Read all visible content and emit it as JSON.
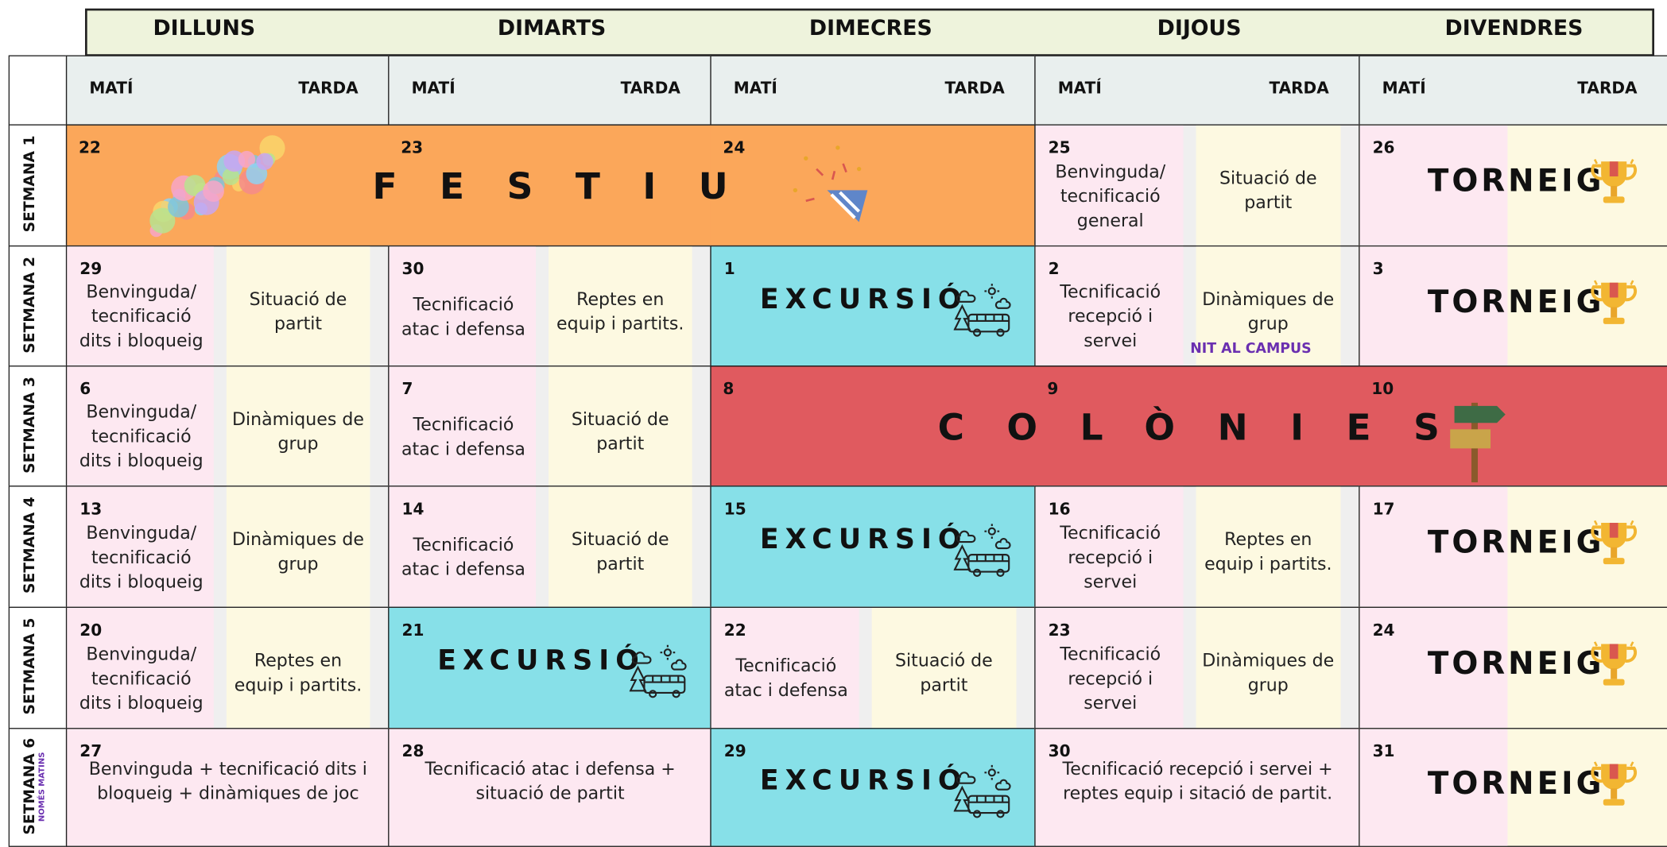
{
  "days": [
    {
      "name": "DILLUNS",
      "morning": "MATÍ",
      "afternoon": "TARDA"
    },
    {
      "name": "DIMARTS",
      "morning": "MATÍ",
      "afternoon": "TARDA"
    },
    {
      "name": "DIMECRES",
      "morning": "MATÍ",
      "afternoon": "TARDA"
    },
    {
      "name": "DIJOUS",
      "morning": "MATÍ",
      "afternoon": "TARDA"
    },
    {
      "name": "DIVENDRES",
      "morning": "MATÍ",
      "afternoon": "TARDA"
    }
  ],
  "weeks": [
    {
      "label": "SETMANA 1",
      "banner": {
        "text": "FESTIU",
        "style": "holiday"
      },
      "cells": [
        {
          "date": 22,
          "style": "banner"
        },
        {
          "date": 23,
          "style": "banner"
        },
        {
          "date": 24,
          "style": "banner"
        },
        {
          "date": 25,
          "morning": "Benvinguda/ tecnificació general",
          "afternoon": "Situació de partit"
        },
        {
          "date": 26,
          "event": "TORNEIG",
          "style": "tournament"
        }
      ]
    },
    {
      "label": "SETMANA 2",
      "cells": [
        {
          "date": 29,
          "morning": "Benvinguda/ tecnificació dits i bloqueig",
          "afternoon": "Situació de partit"
        },
        {
          "date": 30,
          "morning": "Tecnificació atac i defensa",
          "afternoon": "Reptes en equip i partits."
        },
        {
          "date": 1,
          "event": "EXCURSIÓ",
          "style": "excursion"
        },
        {
          "date": 2,
          "morning": "Tecnificació recepció i servei",
          "afternoon": "Dinàmiques de grup",
          "note": "NIT AL CAMPUS"
        },
        {
          "date": 3,
          "event": "TORNEIG",
          "style": "tournament"
        }
      ]
    },
    {
      "label": "SETMANA 3",
      "banner": {
        "text": "COLÒNIES",
        "style": "camp"
      },
      "cells": [
        {
          "date": 6,
          "morning": "Benvinguda/ tecnificació dits i bloqueig",
          "afternoon": "Dinàmiques de grup"
        },
        {
          "date": 7,
          "morning": "Tecnificació atac i defensa",
          "afternoon": "Situació de partit"
        },
        {
          "date": 8,
          "style": "banner"
        },
        {
          "date": 9,
          "style": "banner"
        },
        {
          "date": 10,
          "style": "banner"
        }
      ]
    },
    {
      "label": "SETMANA 4",
      "cells": [
        {
          "date": 13,
          "morning": "Benvinguda/ tecnificació dits i bloqueig",
          "afternoon": "Dinàmiques de grup"
        },
        {
          "date": 14,
          "morning": "Tecnificació atac i defensa",
          "afternoon": "Situació de partit"
        },
        {
          "date": 15,
          "event": "EXCURSIÓ",
          "style": "excursion"
        },
        {
          "date": 16,
          "morning": "Tecnificació recepció i servei",
          "afternoon": "Reptes en equip i partits."
        },
        {
          "date": 17,
          "event": "TORNEIG",
          "style": "tournament"
        }
      ]
    },
    {
      "label": "SETMANA 5",
      "cells": [
        {
          "date": 20,
          "morning": "Benvinguda/ tecnificació dits i bloqueig",
          "afternoon": "Reptes en equip i partits."
        },
        {
          "date": 21,
          "event": "EXCURSIÓ",
          "style": "excursion"
        },
        {
          "date": 22,
          "morning": "Tecnificació atac i defensa",
          "afternoon": "Situació de partit"
        },
        {
          "date": 23,
          "morning": "Tecnificació recepció i servei",
          "afternoon": "Dinàmiques de grup"
        },
        {
          "date": 24,
          "event": "TORNEIG",
          "style": "tournament"
        }
      ]
    },
    {
      "label": "SETMANA 6",
      "note": "NOMÉS MATINS",
      "cells": [
        {
          "date": 27,
          "text": "Benvinguda + tecnificació dits i bloqueig + dinàmiques de joc"
        },
        {
          "date": 28,
          "text": "Tecnificació atac i defensa + situació de partit"
        },
        {
          "date": 29,
          "event": "EXCURSIÓ",
          "style": "excursion"
        },
        {
          "date": 30,
          "text": "Tecnificació recepció i servei + reptes equip i sitació de partit."
        },
        {
          "date": 31,
          "event": "TORNEIG",
          "style": "tournament"
        }
      ]
    }
  ]
}
